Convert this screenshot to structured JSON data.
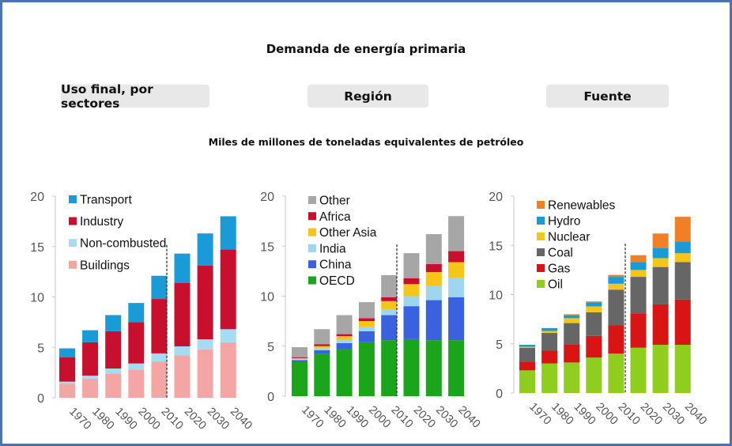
{
  "title": "Demanda de energía primaria",
  "tabs": [
    {
      "label": "Uso final, por sectores"
    },
    {
      "label": "Región"
    },
    {
      "label": "Fuente"
    }
  ],
  "subtitle": "Miles de millones de toneladas equivalentes de petróleo",
  "chart_data": [
    {
      "type": "bar",
      "stacked": true,
      "title": "Uso final, por sectores",
      "categories": [
        "1970",
        "1980",
        "1990",
        "2000",
        "2010",
        "2020",
        "2030",
        "2040"
      ],
      "ylim": [
        0,
        20
      ],
      "yticks": [
        0,
        5,
        10,
        15,
        20
      ],
      "projection_divider_after": "2010",
      "grid": false,
      "legend_position": "top-left",
      "series": [
        {
          "name": "Buildings",
          "color": "#f4a6a4",
          "values": [
            1.4,
            1.9,
            2.4,
            2.8,
            3.6,
            4.2,
            4.8,
            5.5
          ]
        },
        {
          "name": "Non-combusted",
          "color": "#a6dcf2",
          "values": [
            0.2,
            0.3,
            0.5,
            0.6,
            0.8,
            0.9,
            1.0,
            1.3
          ]
        },
        {
          "name": "Industry",
          "color": "#c8102e",
          "values": [
            2.4,
            3.3,
            3.7,
            4.1,
            5.4,
            6.3,
            7.3,
            7.9
          ]
        },
        {
          "name": "Transport",
          "color": "#1a9ad6",
          "values": [
            0.9,
            1.2,
            1.6,
            1.9,
            2.3,
            2.9,
            3.2,
            3.3
          ]
        }
      ],
      "legend_order": [
        "Transport",
        "Industry",
        "Non-combusted",
        "Buildings"
      ]
    },
    {
      "type": "bar",
      "stacked": true,
      "title": "Región",
      "categories": [
        "1970",
        "1980",
        "1990",
        "2000",
        "2010",
        "2020",
        "2030",
        "2040"
      ],
      "ylim": [
        0,
        20
      ],
      "yticks": [
        0,
        5,
        10,
        15,
        20
      ],
      "projection_divider_after": "2010",
      "grid": false,
      "legend_position": "top-left",
      "series": [
        {
          "name": "OECD",
          "color": "#1aa51a",
          "values": [
            3.4,
            4.2,
            4.7,
            5.4,
            5.6,
            5.7,
            5.6,
            5.6
          ]
        },
        {
          "name": "China",
          "color": "#3a62e0",
          "values": [
            0.2,
            0.4,
            0.6,
            1.1,
            2.5,
            3.3,
            4.0,
            4.3
          ]
        },
        {
          "name": "India",
          "color": "#9ed6f0",
          "values": [
            0.1,
            0.2,
            0.3,
            0.4,
            0.6,
            1.0,
            1.4,
            1.9
          ]
        },
        {
          "name": "Other Asia",
          "color": "#f5c518",
          "values": [
            0.1,
            0.2,
            0.4,
            0.6,
            0.8,
            1.2,
            1.4,
            1.6
          ]
        },
        {
          "name": "Africa",
          "color": "#c8102e",
          "values": [
            0.1,
            0.2,
            0.2,
            0.3,
            0.4,
            0.6,
            0.8,
            1.1
          ]
        },
        {
          "name": "Other",
          "color": "#a6a6a6",
          "values": [
            1.0,
            1.5,
            1.9,
            1.6,
            2.2,
            2.5,
            3.0,
            3.5
          ]
        }
      ],
      "legend_order": [
        "Other",
        "Africa",
        "Other Asia",
        "India",
        "China",
        "OECD"
      ]
    },
    {
      "type": "bar",
      "stacked": true,
      "title": "Fuente",
      "categories": [
        "1970",
        "1980",
        "1990",
        "2000",
        "2010",
        "2020",
        "2030",
        "2040"
      ],
      "ylim": [
        0,
        20
      ],
      "yticks": [
        0,
        5,
        10,
        15,
        20
      ],
      "projection_divider_after": "2010",
      "grid": false,
      "legend_position": "top-left",
      "series": [
        {
          "name": "Oil",
          "color": "#8fce1e",
          "values": [
            2.3,
            3.0,
            3.1,
            3.6,
            4.0,
            4.6,
            4.9,
            4.9
          ]
        },
        {
          "name": "Gas",
          "color": "#d81414",
          "values": [
            0.9,
            1.3,
            1.8,
            2.2,
            2.9,
            3.5,
            4.1,
            4.6
          ]
        },
        {
          "name": "Coal",
          "color": "#666666",
          "values": [
            1.4,
            1.8,
            2.2,
            2.4,
            3.6,
            3.7,
            3.8,
            3.8
          ]
        },
        {
          "name": "Nuclear",
          "color": "#f5c518",
          "values": [
            0.1,
            0.2,
            0.5,
            0.6,
            0.6,
            0.7,
            0.9,
            0.9
          ]
        },
        {
          "name": "Hydro",
          "color": "#1a9ad6",
          "values": [
            0.2,
            0.3,
            0.3,
            0.4,
            0.7,
            0.8,
            1.0,
            1.2
          ]
        },
        {
          "name": "Renewables",
          "color": "#f07f26",
          "values": [
            0.0,
            0.0,
            0.1,
            0.1,
            0.2,
            0.7,
            1.5,
            2.5
          ]
        }
      ],
      "legend_order": [
        "Renewables",
        "Hydro",
        "Nuclear",
        "Coal",
        "Gas",
        "Oil"
      ]
    }
  ]
}
